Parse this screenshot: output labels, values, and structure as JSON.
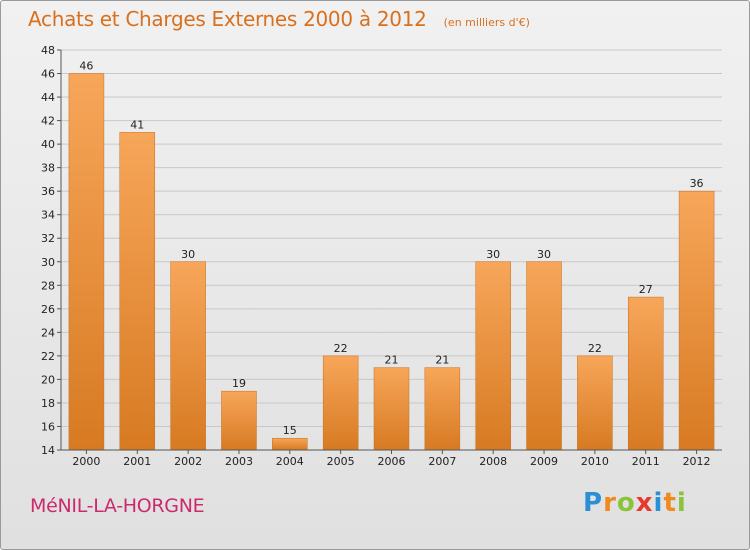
{
  "header": {
    "title": "Achats et Charges Externes 2000 à 2012",
    "subtitle": "(en milliers d'€)"
  },
  "footer": {
    "commune": "MéNIL-LA-HORGNE",
    "logo": "Proxiti"
  },
  "colors": {
    "bar_light": "#f7a65a",
    "bar_dark": "#d77a22",
    "title": "#d9701e",
    "commune": "#cc2a6e"
  },
  "chart_data": {
    "type": "bar",
    "title": "Achats et Charges Externes 2000 à 2012",
    "subtitle": "(en milliers d'€)",
    "categories": [
      "2000",
      "2001",
      "2002",
      "2003",
      "2004",
      "2005",
      "2006",
      "2007",
      "2008",
      "2009",
      "2010",
      "2011",
      "2012"
    ],
    "values": [
      46,
      41,
      30,
      19,
      15,
      22,
      21,
      21,
      30,
      30,
      22,
      27,
      36
    ],
    "ylim": [
      14,
      48
    ],
    "yticks": [
      14,
      16,
      18,
      20,
      22,
      24,
      26,
      28,
      30,
      32,
      34,
      36,
      38,
      40,
      42,
      44,
      46,
      48
    ],
    "grid": true,
    "data_labels": true
  }
}
